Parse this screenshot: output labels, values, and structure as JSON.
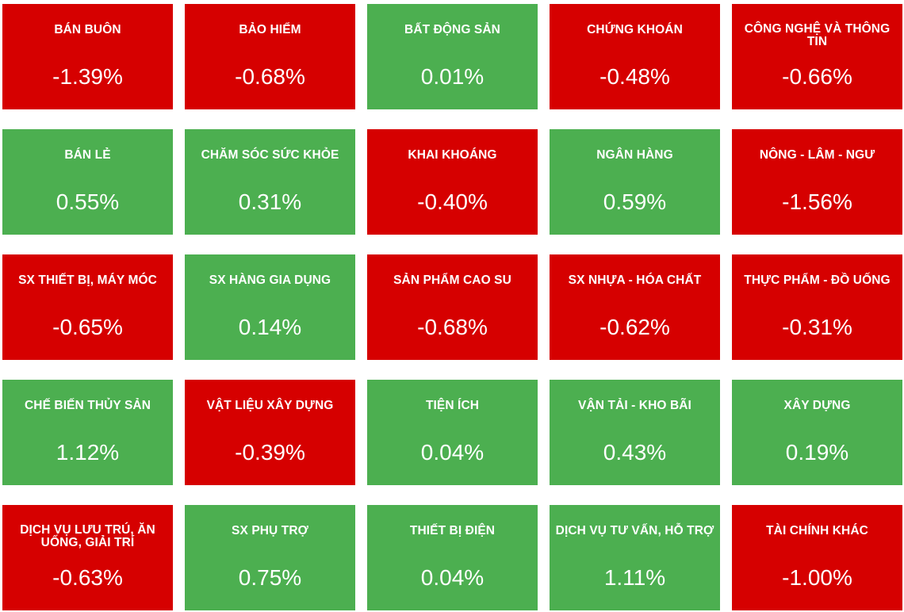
{
  "colors": {
    "down": "#d60000",
    "up": "#4caf50",
    "text": "#ffffff"
  },
  "sectors": [
    {
      "name": "BÁN BUÔN",
      "change": "-1.39%",
      "direction": "down"
    },
    {
      "name": "BẢO HIỂM",
      "change": "-0.68%",
      "direction": "down"
    },
    {
      "name": "BẤT ĐỘNG SẢN",
      "change": "0.01%",
      "direction": "up"
    },
    {
      "name": "CHỨNG KHOÁN",
      "change": "-0.48%",
      "direction": "down"
    },
    {
      "name": "CÔNG NGHỆ VÀ THÔNG TIN",
      "change": "-0.66%",
      "direction": "down"
    },
    {
      "name": "BÁN LẺ",
      "change": "0.55%",
      "direction": "up"
    },
    {
      "name": "CHĂM SÓC SỨC KHỎE",
      "change": "0.31%",
      "direction": "up"
    },
    {
      "name": "KHAI KHOÁNG",
      "change": "-0.40%",
      "direction": "down"
    },
    {
      "name": "NGÂN HÀNG",
      "change": "0.59%",
      "direction": "up"
    },
    {
      "name": "NÔNG - LÂM - NGƯ",
      "change": "-1.56%",
      "direction": "down"
    },
    {
      "name": "SX THIẾT BỊ, MÁY MÓC",
      "change": "-0.65%",
      "direction": "down"
    },
    {
      "name": "SX HÀNG GIA DỤNG",
      "change": "0.14%",
      "direction": "up"
    },
    {
      "name": "SẢN PHẨM CAO SU",
      "change": "-0.68%",
      "direction": "down"
    },
    {
      "name": "SX NHỰA - HÓA CHẤT",
      "change": "-0.62%",
      "direction": "down"
    },
    {
      "name": "THỰC PHẨM - ĐỒ UỐNG",
      "change": "-0.31%",
      "direction": "down"
    },
    {
      "name": "CHẾ BIẾN THỦY SẢN",
      "change": "1.12%",
      "direction": "up"
    },
    {
      "name": "VẬT LIỆU XÂY DỰNG",
      "change": "-0.39%",
      "direction": "down"
    },
    {
      "name": "TIỆN ÍCH",
      "change": "0.04%",
      "direction": "up"
    },
    {
      "name": "VẬN TẢI - KHO BÃI",
      "change": "0.43%",
      "direction": "up"
    },
    {
      "name": "XÂY DỰNG",
      "change": "0.19%",
      "direction": "up"
    },
    {
      "name": "DỊCH VỤ LƯU TRÚ, ĂN UỐNG, GIẢI TRÍ",
      "change": "-0.63%",
      "direction": "down"
    },
    {
      "name": "SX PHỤ TRỢ",
      "change": "0.75%",
      "direction": "up"
    },
    {
      "name": "THIẾT BỊ ĐIỆN",
      "change": "0.04%",
      "direction": "up"
    },
    {
      "name": "DỊCH VỤ TƯ VẤN, HỖ TRỢ",
      "change": "1.11%",
      "direction": "up"
    },
    {
      "name": "TÀI CHÍNH KHÁC",
      "change": "-1.00%",
      "direction": "down"
    }
  ]
}
